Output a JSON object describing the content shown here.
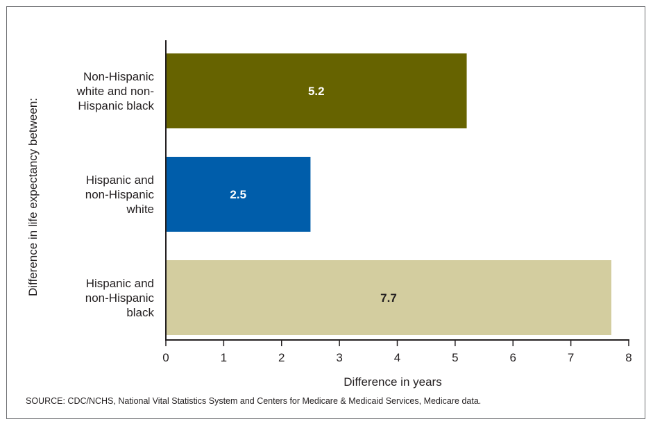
{
  "chart_data": {
    "type": "bar",
    "orientation": "horizontal",
    "categories": [
      [
        "Non-Hispanic",
        "white and non-",
        "Hispanic black"
      ],
      [
        "Hispanic and",
        "non-Hispanic",
        "white"
      ],
      [
        "Hispanic and",
        "non-Hispanic",
        "black"
      ]
    ],
    "values": [
      5.2,
      2.5,
      7.7
    ],
    "value_labels": [
      "5.2",
      "2.5",
      "7.7"
    ],
    "colors": [
      "#666300",
      "#005daa",
      "#d3cd9f"
    ],
    "label_colors": [
      "#ffffff",
      "#ffffff",
      "#231f20"
    ],
    "xlabel": "Difference in years",
    "ylabel": "Difference in life expectancy between:",
    "xlim": [
      0,
      8
    ],
    "xticks": [
      "0",
      "1",
      "2",
      "3",
      "4",
      "5",
      "6",
      "7",
      "8"
    ],
    "grid": false
  },
  "source": "SOURCE: CDC/NCHS, National Vital Statistics System and Centers for Medicare & Medicaid Services, Medicare data."
}
